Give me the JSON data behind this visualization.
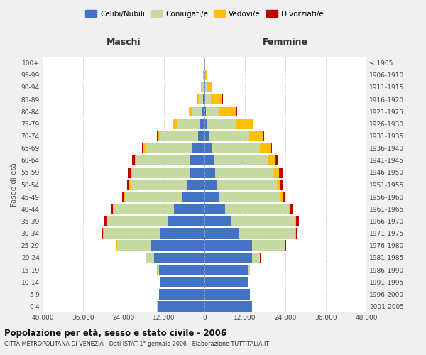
{
  "age_groups": [
    "0-4",
    "5-9",
    "10-14",
    "15-19",
    "20-24",
    "25-29",
    "30-34",
    "35-39",
    "40-44",
    "45-49",
    "50-54",
    "55-59",
    "60-64",
    "65-69",
    "70-74",
    "75-79",
    "80-84",
    "85-89",
    "90-94",
    "95-99",
    "100+"
  ],
  "birth_years": [
    "2001-2005",
    "1996-2000",
    "1991-1995",
    "1986-1990",
    "1981-1985",
    "1976-1980",
    "1971-1975",
    "1966-1970",
    "1961-1965",
    "1956-1960",
    "1951-1955",
    "1946-1950",
    "1941-1945",
    "1936-1940",
    "1931-1935",
    "1926-1930",
    "1921-1925",
    "1916-1920",
    "1911-1915",
    "1906-1910",
    "≤ 1905"
  ],
  "males": {
    "celibi": [
      14000,
      13500,
      13000,
      13500,
      15000,
      16000,
      13000,
      11000,
      9000,
      6500,
      5000,
      4500,
      4200,
      3500,
      2000,
      1200,
      700,
      400,
      200,
      100,
      50
    ],
    "coniugati": [
      50,
      50,
      100,
      500,
      2500,
      10000,
      17000,
      18000,
      18000,
      17000,
      17000,
      17000,
      16000,
      14000,
      11000,
      7000,
      3000,
      1200,
      500,
      200,
      50
    ],
    "vedovi": [
      5,
      5,
      5,
      10,
      20,
      40,
      60,
      80,
      100,
      200,
      300,
      400,
      500,
      600,
      800,
      1000,
      900,
      600,
      250,
      80,
      20
    ],
    "divorziati": [
      5,
      5,
      10,
      20,
      50,
      200,
      400,
      600,
      700,
      700,
      700,
      800,
      700,
      500,
      400,
      200,
      100,
      80,
      40,
      20,
      5
    ]
  },
  "females": {
    "nubili": [
      14000,
      13500,
      13000,
      13000,
      14000,
      14000,
      10000,
      8000,
      6000,
      4500,
      3500,
      3200,
      2800,
      2000,
      1200,
      800,
      500,
      300,
      150,
      80,
      50
    ],
    "coniugate": [
      50,
      50,
      100,
      500,
      2500,
      10000,
      17000,
      19000,
      19000,
      18000,
      18000,
      17500,
      16000,
      14500,
      12000,
      8500,
      4000,
      1500,
      600,
      200,
      60
    ],
    "vedove": [
      5,
      5,
      5,
      10,
      20,
      50,
      100,
      200,
      300,
      600,
      1000,
      1500,
      2000,
      3000,
      4000,
      5000,
      5000,
      3500,
      1500,
      500,
      100
    ],
    "divorziate": [
      5,
      5,
      10,
      20,
      50,
      200,
      500,
      800,
      1000,
      900,
      900,
      1000,
      800,
      600,
      450,
      250,
      150,
      100,
      40,
      20,
      5
    ]
  },
  "colors": {
    "celibi_nubili": "#4472c4",
    "coniugati_e": "#c5d9a0",
    "vedovi_e": "#ffc000",
    "divorziati_e": "#c00000"
  },
  "title": "Popolazione per età, sesso e stato civile - 2006",
  "subtitle": "CITTÀ METROPOLITANA DI VENEZIA - Dati ISTAT 1° gennaio 2006 - Elaborazione TUTTITALIA.IT",
  "xlabel_left": "Maschi",
  "xlabel_right": "Femmine",
  "ylabel_left": "Fasce di età",
  "xtick_labels": [
    "48.000",
    "36.000",
    "24.000",
    "12.000",
    "0",
    "12.000",
    "24.000",
    "36.000",
    "48.000"
  ],
  "xtick_values": [
    -48000,
    -36000,
    -24000,
    -12000,
    0,
    12000,
    24000,
    36000,
    48000
  ],
  "xlim": [
    -48000,
    48000
  ],
  "bg_color": "#f0f0f0",
  "plot_bg_color": "#ffffff",
  "legend_labels": [
    "Celibi/Nubili",
    "Coniugati/e",
    "Vedovi/e",
    "Divorziati/e"
  ],
  "bar_height": 0.85
}
